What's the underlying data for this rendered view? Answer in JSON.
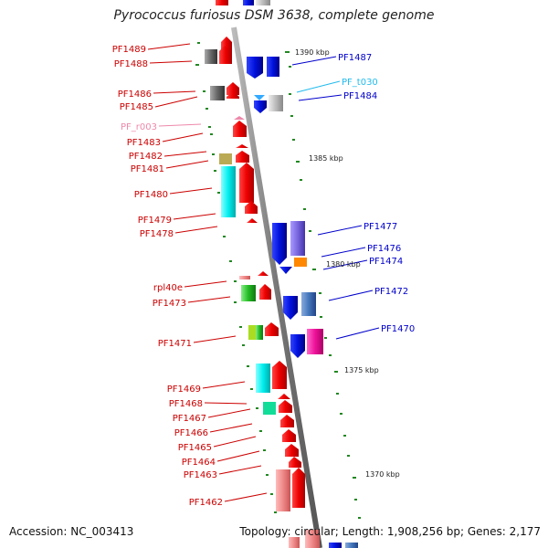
{
  "title": "Pyrococcus furiosus DSM 3638, complete genome",
  "accession": "Accession: NC_003413",
  "stats": "Topology: circular; Length: 1,908,256 bp; Genes: 2,177",
  "scale_marks": [
    "1390 kbp",
    "1385 kbp",
    "1380 kbp",
    "1375 kbp",
    "1370 kbp"
  ],
  "left_labels": [
    {
      "text": "PF1489",
      "color": "#cc0000"
    },
    {
      "text": "PF1488",
      "color": "#cc0000"
    },
    {
      "text": "PF1486",
      "color": "#cc0000"
    },
    {
      "text": "PF1485",
      "color": "#cc0000"
    },
    {
      "text": "PF_r003",
      "color": "#ee88aa"
    },
    {
      "text": "PF1483",
      "color": "#cc0000"
    },
    {
      "text": "PF1482",
      "color": "#cc0000"
    },
    {
      "text": "PF1481",
      "color": "#cc0000"
    },
    {
      "text": "PF1480",
      "color": "#cc0000"
    },
    {
      "text": "PF1479",
      "color": "#cc0000"
    },
    {
      "text": "PF1478",
      "color": "#cc0000"
    },
    {
      "text": "rpl40e",
      "color": "#cc0000"
    },
    {
      "text": "PF1473",
      "color": "#cc0000"
    },
    {
      "text": "PF1471",
      "color": "#cc0000"
    },
    {
      "text": "PF1469",
      "color": "#cc0000"
    },
    {
      "text": "PF1468",
      "color": "#cc0000"
    },
    {
      "text": "PF1467",
      "color": "#cc0000"
    },
    {
      "text": "PF1466",
      "color": "#cc0000"
    },
    {
      "text": "PF1465",
      "color": "#cc0000"
    },
    {
      "text": "PF1464",
      "color": "#cc0000"
    },
    {
      "text": "PF1463",
      "color": "#cc0000"
    },
    {
      "text": "PF1462",
      "color": "#cc0000"
    }
  ],
  "right_labels": [
    {
      "text": "PF1487",
      "color": "#0000cc"
    },
    {
      "text": "PF_t030",
      "color": "#22bbee"
    },
    {
      "text": "PF1484",
      "color": "#0000cc"
    },
    {
      "text": "PF1477",
      "color": "#0000cc"
    },
    {
      "text": "PF1476",
      "color": "#0000cc"
    },
    {
      "text": "PF1474",
      "color": "#0000cc"
    },
    {
      "text": "PF1472",
      "color": "#0000cc"
    },
    {
      "text": "PF1470",
      "color": "#0000cc"
    }
  ],
  "colors": {
    "forward_gene": "#ee1111",
    "reverse_gene": "#1122dd",
    "backbone": "#8a8a8a",
    "tick": "#228822"
  }
}
